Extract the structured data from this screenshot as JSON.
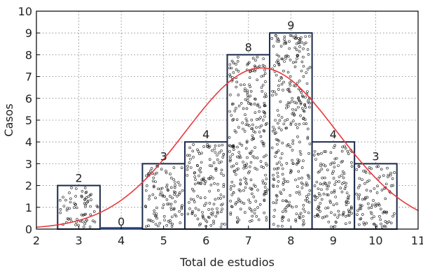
{
  "chart_data": {
    "type": "bar",
    "title": "",
    "xlabel": "Total de estudios",
    "ylabel": "Casos",
    "xlim": [
      2,
      11
    ],
    "ylim": [
      0,
      10
    ],
    "xticks": [
      "2",
      "3",
      "4",
      "5",
      "6",
      "7",
      "8",
      "9",
      "10",
      "11"
    ],
    "yticks": [
      "0",
      "1",
      "2",
      "3",
      "4",
      "5",
      "6",
      "7",
      "8",
      "9",
      "10"
    ],
    "grid": true,
    "bin_edges": [
      2.5,
      3.5,
      4.5,
      5.5,
      6.5,
      7.5,
      8.5,
      9.5,
      10.5
    ],
    "categories": [
      "3",
      "4",
      "5",
      "6",
      "7",
      "8",
      "9",
      "10"
    ],
    "values": [
      2,
      0,
      3,
      4,
      8,
      9,
      4,
      3
    ],
    "data_labels": [
      "2",
      "0",
      "3",
      "4",
      "8",
      "9",
      "4",
      "3"
    ],
    "fit_curve": {
      "type": "normal",
      "mean": 7.3,
      "sd": 1.78,
      "n": 33,
      "bin_width": 1,
      "color": "#e8383c"
    },
    "colors": {
      "bar_edge": "#1a2a4a",
      "bar_fill": "#ffffff",
      "zero_bar": "#3a62b8",
      "grid": "#7a7a7a"
    }
  }
}
